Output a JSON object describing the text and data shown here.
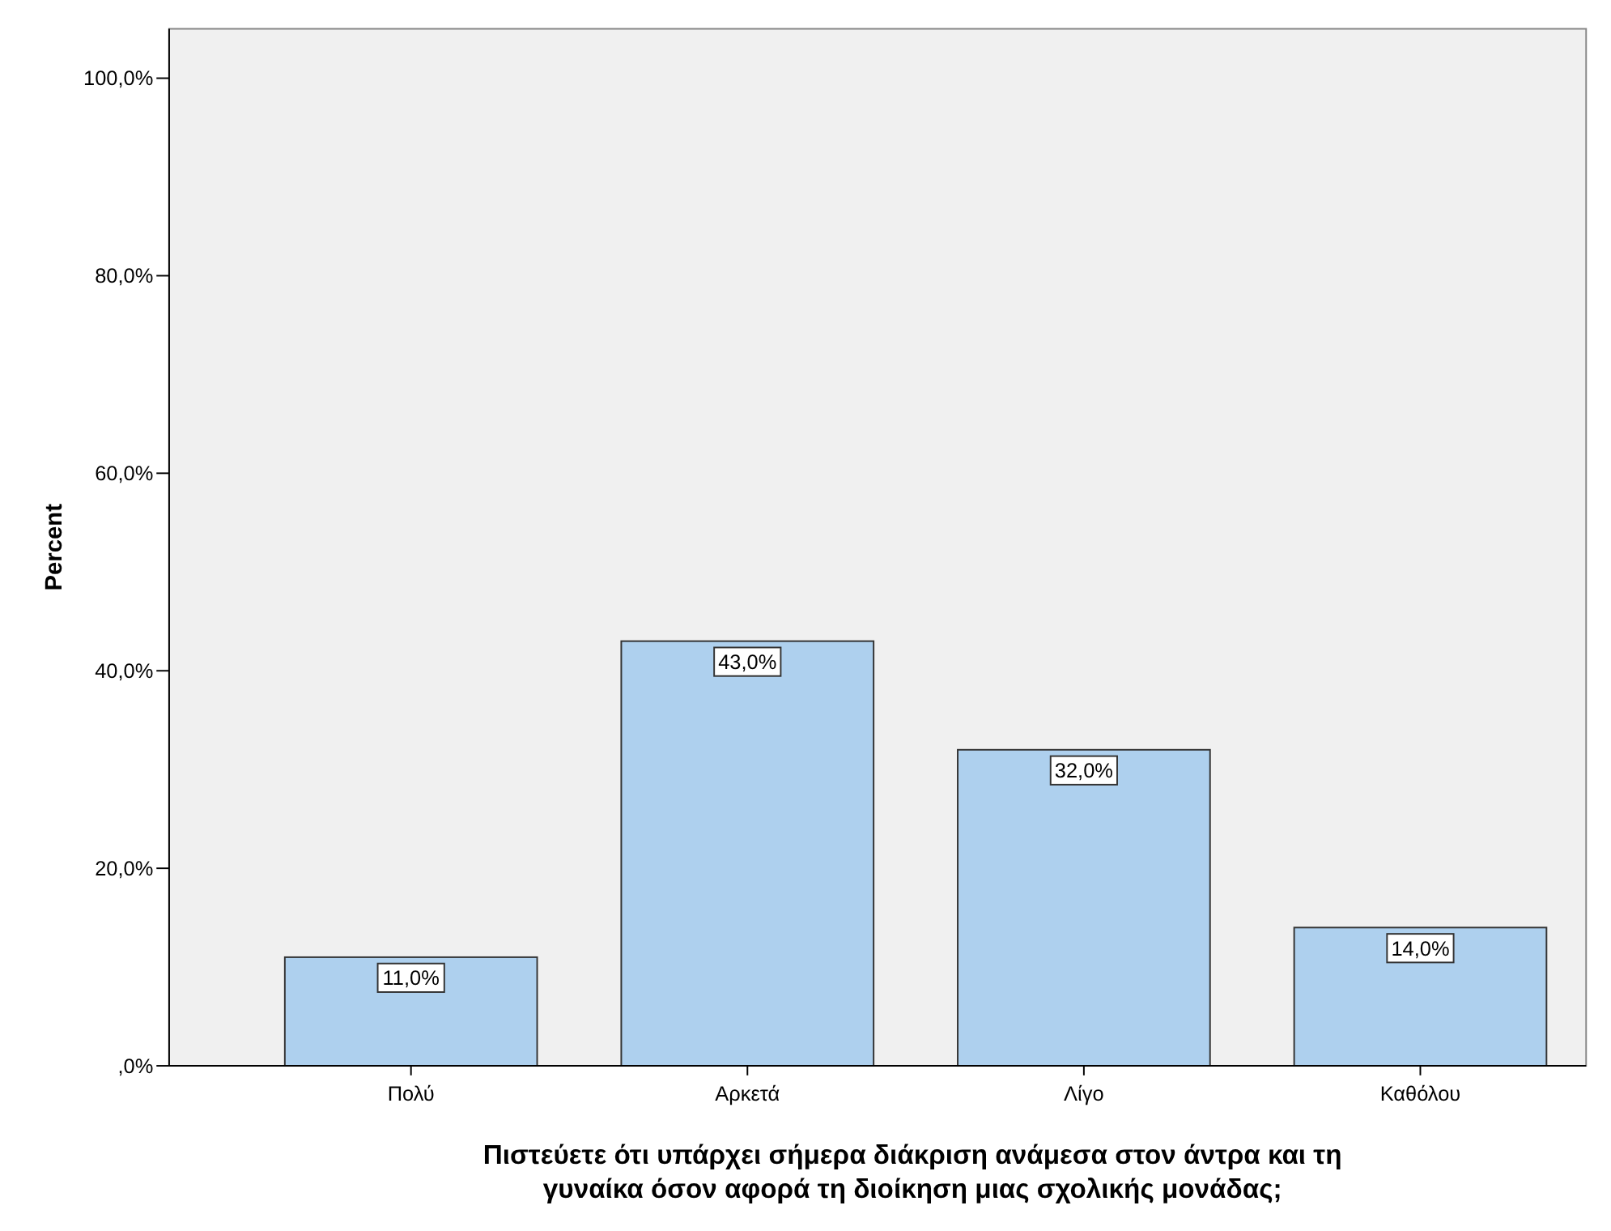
{
  "chart_data": {
    "type": "bar",
    "xlabel": "Πιστεύετε ότι υπάρχει σήμερα διάκριση ανάμεσα στον άντρα και τη γυναίκα όσον αφορά τη διοίκηση μιας σχολικής μονάδας;",
    "ylabel": "Percent",
    "categories": [
      "Πολύ",
      "Αρκετά",
      "Λίγο",
      "Καθόλου"
    ],
    "values": [
      11,
      43,
      32,
      14
    ],
    "value_labels": [
      "11,0%",
      "43,0%",
      "32,0%",
      "14,0%"
    ],
    "color": "#aed0ee",
    "ylim": [
      0,
      105
    ],
    "yticks": [
      {
        "value": 0,
        "label": ",0%"
      },
      {
        "value": 20,
        "label": "20,0%"
      },
      {
        "value": 40,
        "label": "40,0%"
      },
      {
        "value": 60,
        "label": "60,0%"
      },
      {
        "value": 80,
        "label": "80,0%"
      },
      {
        "value": 100,
        "label": "100,0%"
      }
    ],
    "grid": false
  }
}
